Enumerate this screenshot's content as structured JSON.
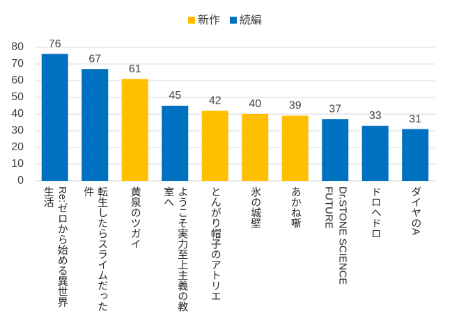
{
  "chart_data": {
    "type": "bar",
    "categories": [
      "Re:ゼロから始める異世界生活",
      "転生したらスライムだった件",
      "黄泉のツガイ",
      "ようこそ実力至上主義の教室へ",
      "とんがり帽子のアトリエ",
      "氷の城壁",
      "あかね噺",
      "Dr.STONE SCIENCE FUTURE",
      "ドロヘドロ",
      "ダイヤのA"
    ],
    "series": [
      {
        "name": "新作",
        "color": "#ffc000",
        "values": [
          null,
          null,
          61,
          null,
          42,
          40,
          39,
          null,
          null,
          null
        ]
      },
      {
        "name": "続編",
        "color": "#0070c0",
        "values": [
          76,
          67,
          null,
          45,
          null,
          null,
          null,
          37,
          33,
          31
        ]
      }
    ],
    "ylim": [
      0,
      80
    ],
    "yticks": [
      0,
      10,
      20,
      30,
      40,
      50,
      60,
      70,
      80
    ],
    "grid": true,
    "legend": "top"
  }
}
